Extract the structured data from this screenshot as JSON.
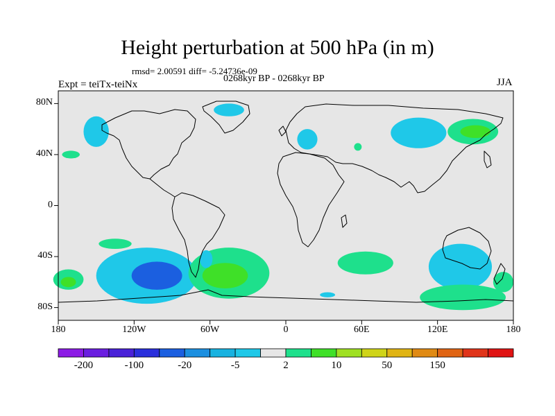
{
  "title": "Height perturbation at 500 hPa (in m)",
  "stats": "rmsd= 2.00591 diff= -5.24736e-09",
  "period": "0268kyr BP - 0268kyr BP",
  "experiment": "Expt = teiTx-teiNx",
  "season": "JJA",
  "map": {
    "lon_range": [
      -180,
      180
    ],
    "lat_range": [
      -90,
      90
    ],
    "background_color": "#e6e6e6",
    "lat_ticks": [
      {
        "value": 80,
        "label": "80N"
      },
      {
        "value": 40,
        "label": "40N"
      },
      {
        "value": 0,
        "label": "0"
      },
      {
        "value": -40,
        "label": "40S"
      },
      {
        "value": -80,
        "label": "80S"
      }
    ],
    "lon_ticks": [
      {
        "value": -180,
        "label": "180"
      },
      {
        "value": -120,
        "label": "120W"
      },
      {
        "value": -60,
        "label": "60W"
      },
      {
        "value": 0,
        "label": "0"
      },
      {
        "value": 60,
        "label": "60E"
      },
      {
        "value": 120,
        "label": "120E"
      },
      {
        "value": 180,
        "label": "180"
      }
    ],
    "anomaly_regions": [
      {
        "name": "se-pacific-low",
        "sign": "negative",
        "level": "-5",
        "center": [
          -110,
          -55
        ],
        "extent": [
          40,
          22
        ]
      },
      {
        "name": "se-pacific-core",
        "sign": "negative",
        "level": "-20",
        "center": [
          -102,
          -55
        ],
        "extent": [
          20,
          11
        ]
      },
      {
        "name": "south-atlantic-high",
        "sign": "positive",
        "level": "2",
        "center": [
          -45,
          -53
        ],
        "extent": [
          32,
          20
        ]
      },
      {
        "name": "south-atlantic-core",
        "sign": "positive",
        "level": "10",
        "center": [
          -48,
          -55
        ],
        "extent": [
          18,
          10
        ]
      },
      {
        "name": "south-indian-high",
        "sign": "positive",
        "level": "2",
        "center": [
          63,
          -45
        ],
        "extent": [
          22,
          9
        ]
      },
      {
        "name": "australia-low",
        "sign": "negative",
        "level": "-5",
        "center": [
          138,
          -48
        ],
        "extent": [
          25,
          18
        ]
      },
      {
        "name": "sw-pacific-high",
        "sign": "positive",
        "level": "2",
        "center": [
          140,
          -72
        ],
        "extent": [
          34,
          10
        ]
      },
      {
        "name": "ne-asia-low",
        "sign": "negative",
        "level": "-5",
        "center": [
          105,
          57
        ],
        "extent": [
          22,
          12
        ]
      },
      {
        "name": "ne-asia-high",
        "sign": "positive",
        "level": "2",
        "center": [
          148,
          58
        ],
        "extent": [
          20,
          10
        ]
      },
      {
        "name": "ne-asia-core",
        "sign": "positive",
        "level": "10",
        "center": [
          150,
          58
        ],
        "extent": [
          12,
          5
        ]
      },
      {
        "name": "alaska-low",
        "sign": "negative",
        "level": "-5",
        "center": [
          -150,
          58
        ],
        "extent": [
          10,
          12
        ]
      },
      {
        "name": "greenland-low",
        "sign": "negative",
        "level": "-5",
        "center": [
          -45,
          75
        ],
        "extent": [
          12,
          5
        ]
      },
      {
        "name": "europe-low",
        "sign": "negative",
        "level": "-5",
        "center": [
          17,
          52
        ],
        "extent": [
          8,
          8
        ]
      },
      {
        "name": "central-asia-high",
        "sign": "positive",
        "level": "2",
        "center": [
          57,
          46
        ],
        "extent": [
          3,
          3
        ]
      },
      {
        "name": "pacific-40n-high",
        "sign": "positive",
        "level": "2",
        "center": [
          -170,
          40
        ],
        "extent": [
          7,
          3
        ]
      },
      {
        "name": "east-pacific-high",
        "sign": "positive",
        "level": "2",
        "center": [
          -135,
          -30
        ],
        "extent": [
          13,
          4
        ]
      },
      {
        "name": "south-pacific-high",
        "sign": "positive",
        "level": "2",
        "center": [
          -172,
          -58
        ],
        "extent": [
          12,
          8
        ]
      },
      {
        "name": "south-pacific-core",
        "sign": "positive",
        "level": "10",
        "center": [
          -172,
          -60
        ],
        "extent": [
          6,
          4
        ]
      },
      {
        "name": "sw-indian-low",
        "sign": "negative",
        "level": "-5",
        "center": [
          33,
          -70
        ],
        "extent": [
          6,
          2
        ]
      },
      {
        "name": "argentina-low",
        "sign": "negative",
        "level": "-5",
        "center": [
          -63,
          -42
        ],
        "extent": [
          5,
          7
        ]
      },
      {
        "name": "ross-sea-high",
        "sign": "positive",
        "level": "2",
        "center": [
          172,
          -60
        ],
        "extent": [
          8,
          8
        ]
      }
    ]
  },
  "colorbar": {
    "colors": [
      "#8c1be5",
      "#6a1ee0",
      "#4a22d8",
      "#2a2fdc",
      "#1b5fe0",
      "#1b8fe0",
      "#18b2e0",
      "#1fc8e8",
      "#e6e6e6",
      "#1ee08c",
      "#3fe028",
      "#9fe022",
      "#cfd418",
      "#e0b414",
      "#e08a14",
      "#e06414",
      "#e0341a",
      "#e01414"
    ],
    "labels": [
      "-200",
      "-100",
      "-20",
      "-5",
      "2",
      "10",
      "50",
      "150"
    ],
    "level_colors": {
      "-20": "#1b5fe0",
      "-5": "#1fc8e8",
      "2": "#1ee08c",
      "10": "#3fe028"
    }
  }
}
